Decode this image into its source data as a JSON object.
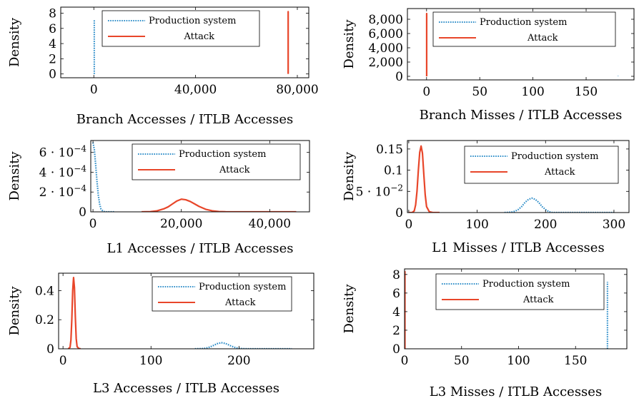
{
  "chart_data": [
    {
      "type": "line",
      "xlabel": "Branch Accesses / ITLB Accesses",
      "ylabel": "Density",
      "xlim": [
        -13000,
        84500
      ],
      "ylim": [
        -0.5,
        8.8
      ],
      "xticks": [
        {
          "v": 0,
          "label": "0"
        },
        {
          "v": 40000,
          "label": "40,000"
        },
        {
          "v": 80000,
          "label": "80,000"
        }
      ],
      "yticks": [
        {
          "v": 0,
          "label": "0"
        },
        {
          "v": 2,
          "label": "2"
        },
        {
          "v": 4,
          "label": "4"
        },
        {
          "v": 6,
          "label": "6"
        },
        {
          "v": 8,
          "label": "8"
        }
      ],
      "legend": {
        "position": "top-center"
      },
      "series": [
        {
          "name": "Production system",
          "style": "dotted",
          "color": "#2f8ec9",
          "x": [
            179,
            179
          ],
          "y": [
            0,
            7.2
          ]
        },
        {
          "name": "Attack",
          "style": "solid",
          "color": "#e8462a",
          "x": [
            76400,
            76400,
            76400
          ],
          "y": [
            0,
            8.2,
            0
          ]
        }
      ]
    },
    {
      "type": "line",
      "xlabel": "Branch Misses / ITLB Accesses",
      "ylabel": "Density",
      "xlim": [
        -18,
        195
      ],
      "ylim": [
        -500,
        9500
      ],
      "xticks": [
        {
          "v": 0,
          "label": "0"
        },
        {
          "v": 50,
          "label": "50"
        },
        {
          "v": 100,
          "label": "100"
        },
        {
          "v": 150,
          "label": "150"
        }
      ],
      "yticks": [
        {
          "v": 0,
          "label": "0"
        },
        {
          "v": 2000,
          "label": "2,000"
        },
        {
          "v": 4000,
          "label": "4,000"
        },
        {
          "v": 6000,
          "label": "6,000"
        },
        {
          "v": 8000,
          "label": "8,000"
        }
      ],
      "legend": {
        "position": "top-center"
      },
      "series": [
        {
          "name": "Production system",
          "style": "dotted",
          "color": "#2f8ec9",
          "x": [
            180,
            180
          ],
          "y": [
            0,
            40
          ]
        },
        {
          "name": "Attack",
          "style": "solid",
          "color": "#e8462a",
          "x": [
            0.1,
            0.1,
            0.1
          ],
          "y": [
            0,
            8800,
            0
          ]
        }
      ]
    },
    {
      "type": "line",
      "xlabel": "L1 Accesses / ITLB Accesses",
      "ylabel": "Density",
      "xlim": [
        -500,
        49000
      ],
      "ylim": [
        0,
        0.00072
      ],
      "xticks": [
        {
          "v": 0,
          "label": "0"
        },
        {
          "v": 20000,
          "label": "20,000"
        },
        {
          "v": 40000,
          "label": "40,000"
        }
      ],
      "yticks": [
        {
          "v": 0,
          "label": "0"
        },
        {
          "v": 0.0002,
          "label": "2 · 10",
          "exp": "−4"
        },
        {
          "v": 0.0004,
          "label": "4 · 10",
          "exp": "−4"
        },
        {
          "v": 0.0006,
          "label": "6 · 10",
          "exp": "−4"
        }
      ],
      "legend": {
        "position": "top-center"
      },
      "series": [
        {
          "name": "Production system",
          "style": "dotted",
          "color": "#2f8ec9",
          "x": [
            0,
            300,
            600,
            900,
            1200,
            1500,
            1800,
            2200,
            2600,
            3000,
            4000,
            5000
          ],
          "y": [
            0.0007,
            0.00063,
            0.00048,
            0.00031,
            0.00017,
            8e-05,
            3e-05,
            1e-05,
            2e-06,
            0,
            0,
            0
          ]
        },
        {
          "name": "Attack",
          "style": "solid",
          "color": "#e8462a",
          "x": [
            11000,
            13000,
            14500,
            16000,
            17000,
            18000,
            19000,
            20000,
            21000,
            22000,
            23000,
            24000,
            25500,
            27000,
            28500,
            30000,
            32000,
            36000,
            40000,
            44000,
            46000
          ],
          "y": [
            0,
            2e-06,
            1e-05,
            3e-05,
            5e-05,
            8e-05,
            0.00011,
            0.000128,
            0.000122,
            0.000105,
            8e-05,
            5.5e-05,
            2.6e-05,
            1e-05,
            3e-06,
            1e-06,
            5e-07,
            2e-07,
            2e-07,
            2e-07,
            0
          ]
        }
      ]
    },
    {
      "type": "line",
      "xlabel": "L1 Misses / ITLB Accesses",
      "ylabel": "Density",
      "xlim": [
        -2,
        322
      ],
      "ylim": [
        0,
        0.17
      ],
      "xticks": [
        {
          "v": 0,
          "label": "0"
        },
        {
          "v": 100,
          "label": "100"
        },
        {
          "v": 200,
          "label": "200"
        },
        {
          "v": 300,
          "label": "300"
        }
      ],
      "yticks": [
        {
          "v": 0,
          "label": "0"
        },
        {
          "v": 0.05,
          "label": "5 · 10",
          "exp": "−2"
        },
        {
          "v": 0.1,
          "label": "0.1"
        },
        {
          "v": 0.15,
          "label": "0.15"
        }
      ],
      "legend": {
        "position": "top-center"
      },
      "series": [
        {
          "name": "Production system",
          "style": "dotted",
          "color": "#2f8ec9",
          "x": [
            140,
            150,
            155,
            160,
            165,
            170,
            175,
            180,
            185,
            190,
            195,
            200,
            205,
            210,
            230,
            260,
            300
          ],
          "y": [
            0,
            0.001,
            0.003,
            0.007,
            0.014,
            0.024,
            0.031,
            0.034,
            0.031,
            0.024,
            0.014,
            0.007,
            0.002,
            0,
            0,
            0,
            0
          ]
        },
        {
          "name": "Attack",
          "style": "solid",
          "color": "#e8462a",
          "x": [
            0,
            5,
            8,
            10,
            12,
            14,
            16,
            18,
            20,
            22,
            24,
            26,
            30,
            35,
            40,
            45
          ],
          "y": [
            0,
            0,
            0.004,
            0.018,
            0.05,
            0.1,
            0.142,
            0.157,
            0.14,
            0.09,
            0.042,
            0.014,
            0.002,
            0,
            0,
            0
          ]
        }
      ]
    },
    {
      "type": "line",
      "xlabel": "L3 Accesses / ITLB Accesses",
      "ylabel": "Density",
      "xlim": [
        -5,
        285
      ],
      "ylim": [
        0,
        0.52
      ],
      "xticks": [
        {
          "v": 0,
          "label": "0"
        },
        {
          "v": 100,
          "label": "100"
        },
        {
          "v": 200,
          "label": "200"
        }
      ],
      "yticks": [
        {
          "v": 0,
          "label": "0"
        },
        {
          "v": 0.2,
          "label": "0.2"
        },
        {
          "v": 0.4,
          "label": "0.4"
        }
      ],
      "legend": {
        "position": "top-center"
      },
      "series": [
        {
          "name": "Production system",
          "style": "dotted",
          "color": "#2f8ec9",
          "x": [
            150,
            160,
            165,
            170,
            175,
            180,
            185,
            190,
            195,
            200,
            205,
            210,
            230,
            260
          ],
          "y": [
            0,
            0.002,
            0.008,
            0.02,
            0.035,
            0.042,
            0.036,
            0.022,
            0.01,
            0.003,
            0.001,
            0,
            0,
            0
          ]
        },
        {
          "name": "Attack",
          "style": "solid",
          "color": "#e8462a",
          "x": [
            6,
            8,
            9,
            10,
            11,
            12,
            13,
            14,
            15,
            16,
            18,
            20
          ],
          "y": [
            0,
            0.01,
            0.06,
            0.2,
            0.4,
            0.49,
            0.42,
            0.22,
            0.07,
            0.015,
            0.002,
            0
          ]
        }
      ]
    },
    {
      "type": "line",
      "xlabel": "L3 Misses / ITLB Accesses",
      "ylabel": "Density",
      "xlim": [
        0,
        195
      ],
      "ylim": [
        0,
        8.6
      ],
      "xticks": [
        {
          "v": 0,
          "label": "0"
        },
        {
          "v": 50,
          "label": "50"
        },
        {
          "v": 100,
          "label": "100"
        },
        {
          "v": 150,
          "label": "150"
        }
      ],
      "yticks": [
        {
          "v": 0,
          "label": "0"
        },
        {
          "v": 2,
          "label": "2"
        },
        {
          "v": 4,
          "label": "4"
        },
        {
          "v": 6,
          "label": "6"
        },
        {
          "v": 8,
          "label": "8"
        }
      ],
      "legend": {
        "position": "top-center"
      },
      "series": [
        {
          "name": "Production system",
          "style": "dotted",
          "color": "#2f8ec9",
          "x": [
            178,
            178
          ],
          "y": [
            0,
            7.2
          ]
        },
        {
          "name": "Attack",
          "style": "solid",
          "color": "#e8462a",
          "x": [
            0.3,
            0.3,
            0.3
          ],
          "y": [
            0,
            8.3,
            0
          ]
        }
      ]
    }
  ]
}
